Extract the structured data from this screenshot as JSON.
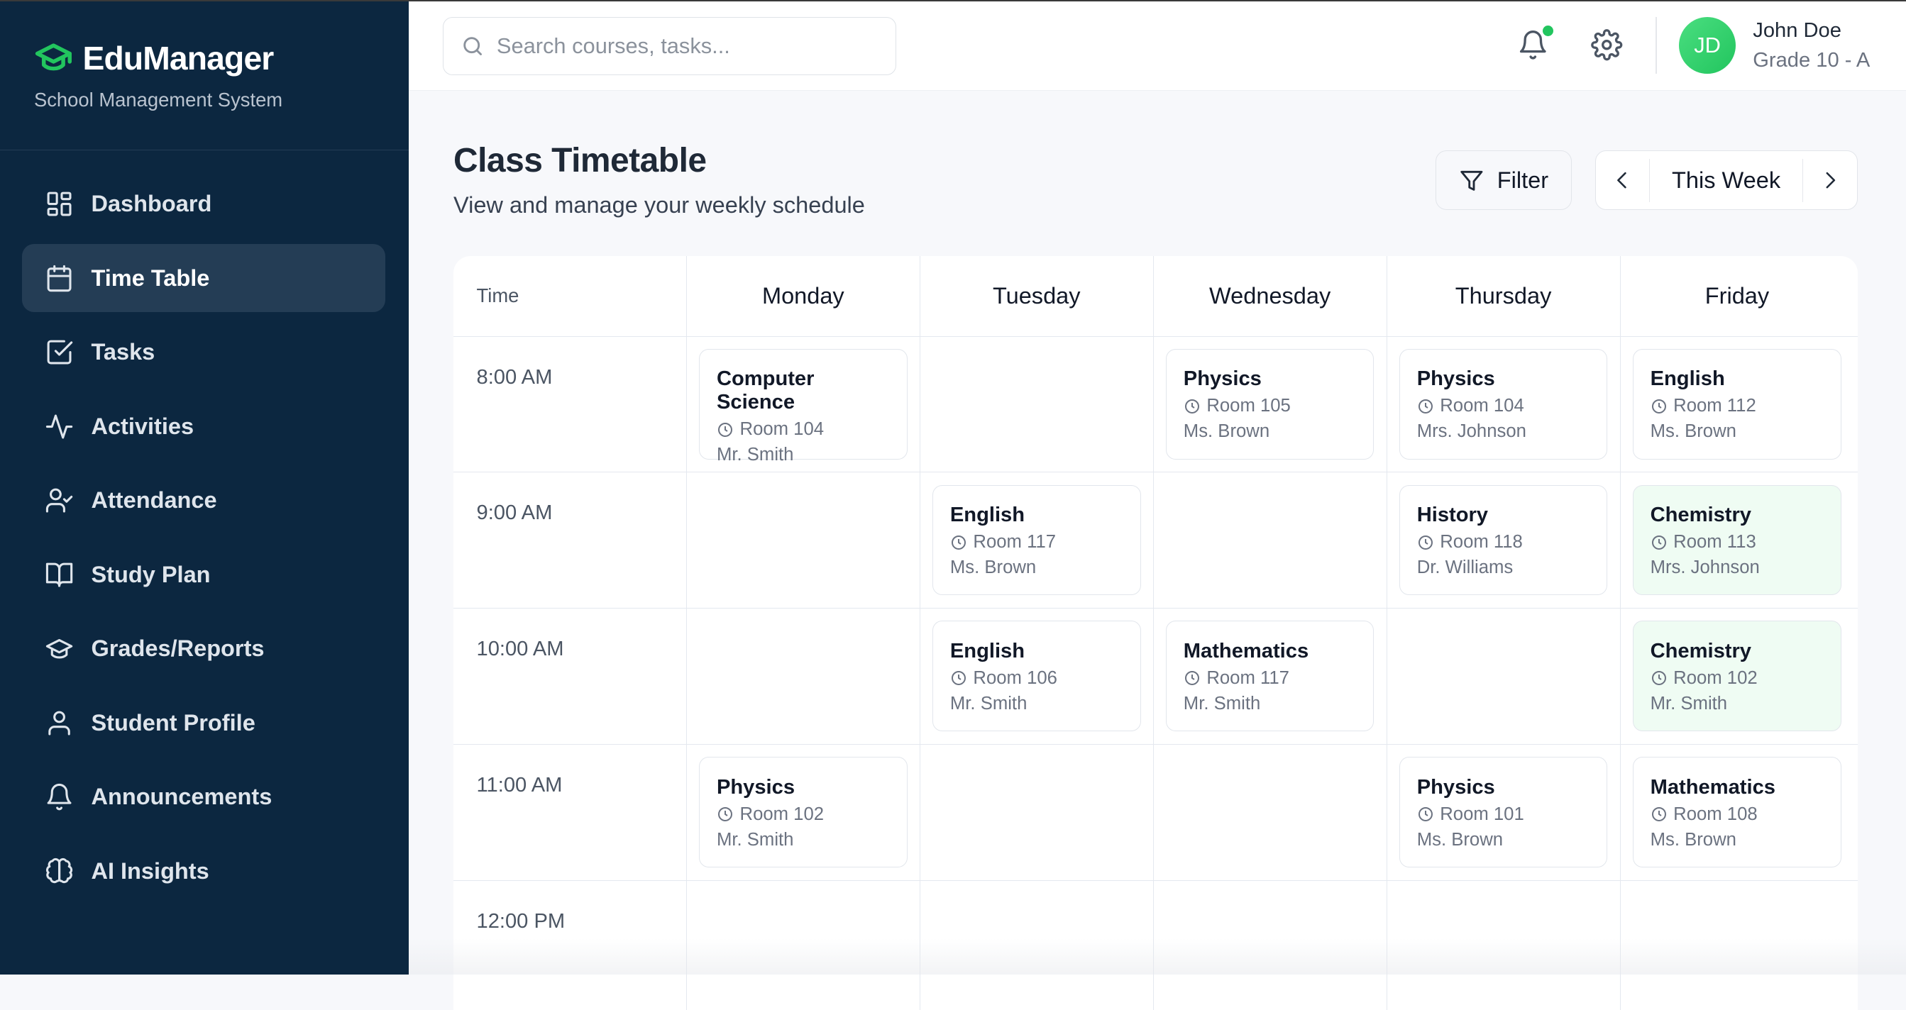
{
  "brand": {
    "name": "EduManager",
    "subtitle": "School Management System",
    "accent": "#22c55e"
  },
  "sidebar": {
    "items": [
      {
        "label": "Dashboard",
        "icon": "dashboard-icon"
      },
      {
        "label": "Time Table",
        "icon": "calendar-icon",
        "active": true
      },
      {
        "label": "Tasks",
        "icon": "checkbox-icon"
      },
      {
        "label": "Activities",
        "icon": "activity-icon"
      },
      {
        "label": "Attendance",
        "icon": "user-check-icon"
      },
      {
        "label": "Study Plan",
        "icon": "book-open-icon"
      },
      {
        "label": "Grades/Reports",
        "icon": "graduation-cap-icon"
      },
      {
        "label": "Student Profile",
        "icon": "user-icon"
      },
      {
        "label": "Announcements",
        "icon": "bell-icon"
      },
      {
        "label": "AI Insights",
        "icon": "brain-icon"
      }
    ]
  },
  "header": {
    "search_placeholder": "Search courses, tasks...",
    "user": {
      "initials": "JD",
      "name": "John Doe",
      "grade": "Grade 10 - A"
    },
    "has_notification": true
  },
  "page": {
    "title": "Class Timetable",
    "subtitle": "View and manage your weekly schedule",
    "filter_label": "Filter",
    "week_label": "This Week"
  },
  "timetable": {
    "time_header": "Time",
    "days": [
      "Monday",
      "Tuesday",
      "Wednesday",
      "Thursday",
      "Friday"
    ],
    "rows": [
      {
        "time": "8:00 AM",
        "cells": [
          {
            "subject": "Computer Science",
            "room": "Room 104",
            "teacher": "Mr. Smith"
          },
          null,
          {
            "subject": "Physics",
            "room": "Room 105",
            "teacher": "Ms. Brown"
          },
          {
            "subject": "Physics",
            "room": "Room 104",
            "teacher": "Mrs. Johnson"
          },
          {
            "subject": "English",
            "room": "Room 112",
            "teacher": "Ms. Brown"
          }
        ]
      },
      {
        "time": "9:00 AM",
        "cells": [
          null,
          {
            "subject": "English",
            "room": "Room 117",
            "teacher": "Ms. Brown"
          },
          null,
          {
            "subject": "History",
            "room": "Room 118",
            "teacher": "Dr. Williams"
          },
          {
            "subject": "Chemistry",
            "room": "Room 113",
            "teacher": "Mrs. Johnson",
            "highlight": true
          }
        ]
      },
      {
        "time": "10:00 AM",
        "cells": [
          null,
          {
            "subject": "English",
            "room": "Room 106",
            "teacher": "Mr. Smith"
          },
          {
            "subject": "Mathematics",
            "room": "Room 117",
            "teacher": "Mr. Smith"
          },
          null,
          {
            "subject": "Chemistry",
            "room": "Room 102",
            "teacher": "Mr. Smith",
            "highlight": true
          }
        ]
      },
      {
        "time": "11:00 AM",
        "cells": [
          {
            "subject": "Physics",
            "room": "Room 102",
            "teacher": "Mr. Smith"
          },
          null,
          null,
          {
            "subject": "Physics",
            "room": "Room 101",
            "teacher": "Ms. Brown"
          },
          {
            "subject": "Mathematics",
            "room": "Room 108",
            "teacher": "Ms. Brown"
          }
        ]
      },
      {
        "time": "12:00 PM",
        "cells": [
          null,
          null,
          null,
          null,
          null
        ]
      }
    ]
  }
}
